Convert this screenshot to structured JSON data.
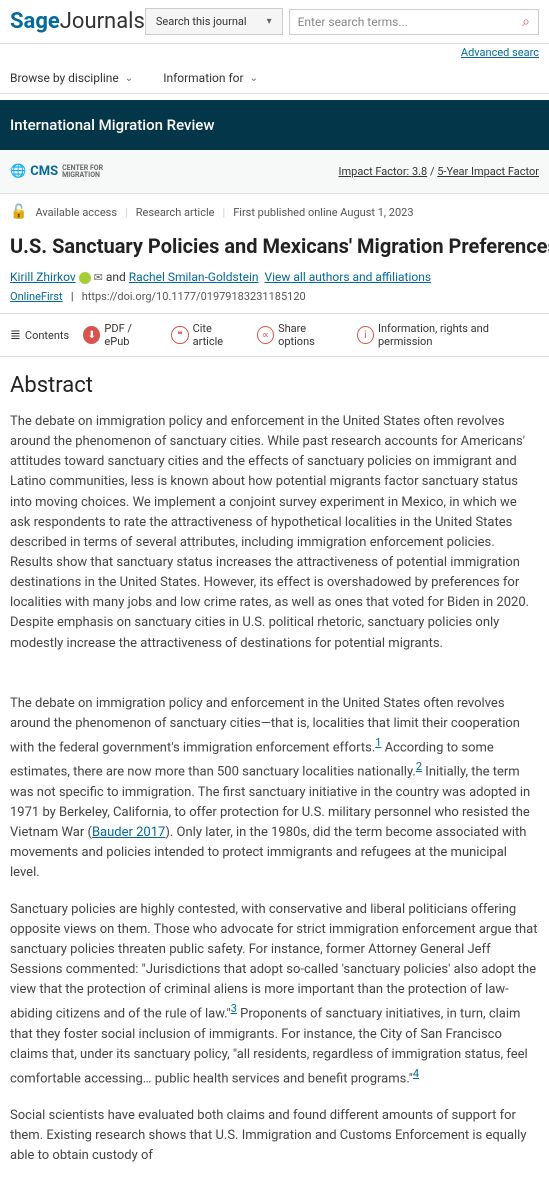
{
  "logo": {
    "sage": "Sage",
    "journals": "Journals"
  },
  "search": {
    "scope": "Search this journal",
    "placeholder": "Enter search terms..."
  },
  "adv_search": "Advanced searc",
  "nav": {
    "browse": "Browse by discipline",
    "info": "Information for"
  },
  "journal_name": "International Migration Review",
  "cms": "CMS",
  "impact": {
    "label": "Impact Factor:",
    "value": "3.8",
    "y5": "5-Year Impact Factor"
  },
  "access": "Available access",
  "type": "Research article",
  "pub": "First published online August 1, 2023",
  "title": "U.S. Sanctuary Policies and Mexicans' Migration Preferences: A Conjoint-Experimenta",
  "authors": {
    "a1": "Kirill Zhirkov",
    "and": "and",
    "a2": "Rachel Smilan-Goldstein",
    "view": "View all authors and affiliations"
  },
  "onlinefirst": "OnlineFirst",
  "doi": "https://doi.org/10.1177/01979183231185120",
  "tools": {
    "contents": "Contents",
    "pdf": "PDF / ePub",
    "cite": "Cite article",
    "share": "Share options",
    "info": "Information, rights and permission"
  },
  "abstract_h": "Abstract",
  "abstract": "The debate on immigration policy and enforcement in the United States often revolves around the phenomenon of sanctuary cities. While past research accounts for Americans' attitudes toward sanctuary cities and the effects of sanctuary policies on immigrant and Latino communities, less is known about how potential migrants factor sanctuary status into moving choices. We implement a conjoint survey experiment in Mexico, in which we ask respondents to rate the attractiveness of hypothetical localities in the United States described in terms of several attributes, including immigration enforcement policies. Results show that sanctuary status increases the attractiveness of potential immigration destinations in the United States. However, its effect is overshadowed by preferences for localities with many jobs and low crime rates, as well as ones that voted for Biden in 2020. Despite emphasis on sanctuary cities in U.S. political rhetoric, sanctuary policies only modestly increase the attractiveness of destinations for potential migrants.",
  "p1a": "The debate on immigration policy and enforcement in the United States often revolves around the phenomenon of sanctuary cities—that is, localities that limit their cooperation with the federal government's immigration enforcement efforts.",
  "p1b": " According to some estimates, there are now more than 500 sanctuary localities nationally.",
  "p1c": " Initially, the term was not specific to immigration. The first sanctuary initiative in the country was adopted in 1971 by Berkeley, California, to offer protection for U.S. military personnel who resisted the Vietnam War (",
  "bauder": "Bauder 2017",
  "p1d": "). Only later, in the 1980s, did the term become associated with movements and policies intended to protect immigrants and refugees at the municipal level.",
  "p2a": "Sanctuary policies are highly contested, with conservative and liberal politicians offering opposite views on them. Those who advocate for strict immigration enforcement argue that sanctuary policies threaten public safety. For instance, former Attorney General Jeff Sessions commented: \"Jurisdictions that adopt so-called 'sanctuary policies' also adopt the view that the protection of criminal aliens is more important than the protection of law-abiding citizens and of the rule of law.\"",
  "p2b": " Proponents of sanctuary initiatives, in turn, claim that they foster social inclusion of immigrants. For instance, the City of San Francisco claims that, under its sanctuary policy, \"all residents, regardless of immigration status, feel comfortable accessing… public health services and benefit programs.\"",
  "p3": "Social scientists have evaluated both claims and found different amounts of support for them. Existing research shows that U.S. Immigration and Customs Enforcement is equally able to obtain custody of"
}
